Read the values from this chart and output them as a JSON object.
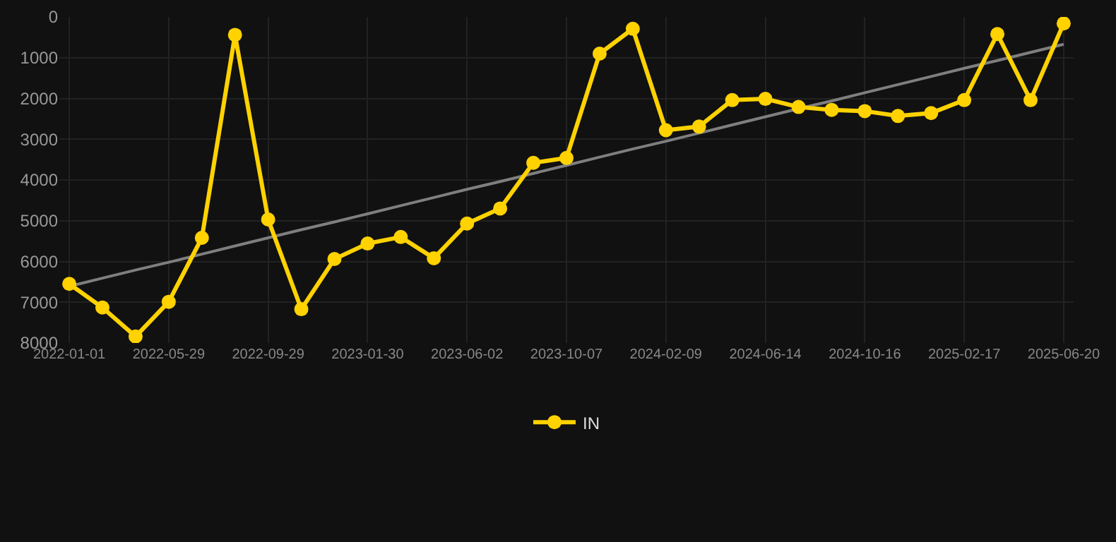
{
  "chart_data": {
    "type": "line",
    "categories": [
      "2022-01-01",
      null,
      null,
      "2022-05-29",
      null,
      null,
      "2022-09-29",
      null,
      null,
      "2023-01-30",
      null,
      null,
      "2023-06-02",
      null,
      null,
      "2023-10-07",
      null,
      null,
      "2024-02-09",
      null,
      null,
      "2024-06-14",
      null,
      null,
      "2024-10-16",
      null,
      null,
      "2025-02-17",
      null,
      null,
      "2025-06-20"
    ],
    "series": [
      {
        "name": "IN",
        "color": "#ffd200",
        "values": [
          6550,
          7130,
          7840,
          6990,
          5420,
          440,
          4970,
          7170,
          5940,
          5560,
          5400,
          5920,
          5070,
          4700,
          3580,
          3460,
          900,
          290,
          2780,
          2690,
          2040,
          2010,
          2210,
          2280,
          2310,
          2430,
          2360,
          2040,
          420,
          2040,
          160
        ]
      },
      {
        "type": "line",
        "color": "#7f7f7f",
        "marker": "none",
        "values": [
          6610,
          6410,
          6210,
          6020,
          5820,
          5620,
          5420,
          5220,
          5030,
          4830,
          4630,
          4430,
          4230,
          4040,
          3840,
          3640,
          3440,
          3240,
          3050,
          2850,
          2650,
          2450,
          2250,
          2060,
          1860,
          1660,
          1460,
          1260,
          1070,
          870,
          670
        ]
      }
    ],
    "ylim": [
      8000,
      0
    ],
    "yticks": [
      0,
      1000,
      2000,
      3000,
      4000,
      5000,
      6000,
      7000,
      8000
    ],
    "grid": true,
    "legend": "bottom",
    "marker": "circle",
    "line_style": "solid"
  }
}
